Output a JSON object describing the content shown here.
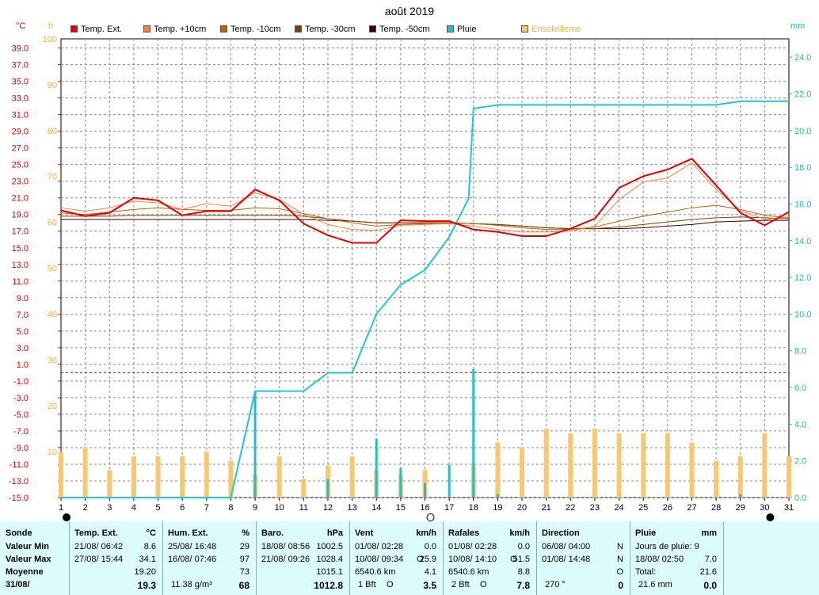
{
  "title": "août 2019",
  "units": {
    "temp": "°C",
    "hum": "h",
    "rain": "mm"
  },
  "legend": [
    {
      "label": "Temp. Ext.",
      "color": "#e00000"
    },
    {
      "label": "Temp. +10cm",
      "color": "#ff8040"
    },
    {
      "label": "Temp. -10cm",
      "color": "#c06000"
    },
    {
      "label": "Temp. -30cm",
      "color": "#804000"
    },
    {
      "label": "Temp. -50cm",
      "color": "#400000"
    },
    {
      "label": "Pluie",
      "color": "#20c0c8"
    },
    {
      "label": "Ensoleilleme",
      "color": "#f8c870"
    }
  ],
  "chart_data": {
    "type": "line",
    "title": "août 2019",
    "x": [
      1,
      2,
      3,
      4,
      5,
      6,
      7,
      8,
      9,
      10,
      11,
      12,
      13,
      14,
      15,
      16,
      17,
      18,
      19,
      20,
      21,
      22,
      23,
      24,
      25,
      26,
      27,
      28,
      29,
      30,
      31
    ],
    "x_ticks": [
      "1",
      "2",
      "3",
      "4",
      "5",
      "6",
      "7",
      "8",
      "9",
      "10",
      "11",
      "12",
      "13",
      "14",
      "15",
      "16",
      "17",
      "18",
      "19",
      "20",
      "21",
      "22",
      "23",
      "24",
      "25",
      "26",
      "27",
      "28",
      "29",
      "30",
      "31"
    ],
    "y_left_ticks": [
      "39.0",
      "37.0",
      "35.0",
      "33.0",
      "31.0",
      "29.0",
      "27.0",
      "25.0",
      "23.0",
      "21.0",
      "19.0",
      "17.0",
      "15.0",
      "13.0",
      "11.0",
      "9.0",
      "7.0",
      "5.0",
      "3.0",
      "1.0",
      "-1.0",
      "-3.0",
      "-5.0",
      "-7.0",
      "-9.0",
      "-11.0",
      "-13.0",
      "-15.0"
    ],
    "y_left_range": [
      -15,
      40.1
    ],
    "y_hum_ticks": [
      "100",
      "90",
      "80",
      "70",
      "60",
      "50",
      "40",
      "30",
      "20",
      "10"
    ],
    "y_hum_range": [
      0,
      100
    ],
    "y_right_ticks": [
      "24.0",
      "22.0",
      "20.0",
      "18.0",
      "16.0",
      "14.0",
      "12.0",
      "10.0",
      "8.0",
      "6.0",
      "4.0",
      "2.0",
      "0.0"
    ],
    "y_right_range": [
      0,
      25
    ],
    "grid": true,
    "series": [
      {
        "name": "Temp. Ext.",
        "axis": "temp",
        "color": "#e00000",
        "width": 2,
        "values": [
          19.5,
          18.8,
          19.2,
          21.0,
          20.7,
          18.9,
          19.4,
          19.4,
          22.0,
          20.7,
          17.9,
          16.5,
          15.6,
          15.6,
          18.3,
          18.2,
          18.2,
          17.2,
          16.9,
          16.4,
          16.4,
          17.3,
          18.5,
          22.2,
          23.6,
          24.4,
          25.7,
          22.5,
          19.2,
          17.7,
          19.3
        ]
      },
      {
        "name": "Temp. +10cm",
        "axis": "temp",
        "color": "#ff8040",
        "width": 1,
        "values": [
          19.8,
          19.4,
          19.8,
          20.6,
          20.4,
          19.6,
          20.3,
          20.0,
          21.6,
          20.8,
          19.0,
          17.8,
          17.2,
          17.1,
          17.7,
          17.8,
          17.9,
          17.6,
          17.2,
          16.9,
          16.9,
          17.0,
          17.6,
          20.8,
          22.9,
          23.4,
          25.2,
          22.0,
          19.5,
          18.4,
          18.7
        ]
      },
      {
        "name": "Temp. -10cm",
        "axis": "temp",
        "color": "#c06000",
        "width": 1,
        "values": [
          19.2,
          19.0,
          19.3,
          19.6,
          19.8,
          19.6,
          19.5,
          19.5,
          19.8,
          19.7,
          19.1,
          18.5,
          18.0,
          17.6,
          17.8,
          17.9,
          18.0,
          17.9,
          17.7,
          17.4,
          17.2,
          17.2,
          17.5,
          18.2,
          18.8,
          19.3,
          19.8,
          20.1,
          19.6,
          18.9,
          18.6
        ]
      },
      {
        "name": "Temp. -30cm",
        "axis": "temp",
        "color": "#804000",
        "width": 1,
        "values": [
          18.8,
          18.8,
          18.8,
          18.9,
          18.9,
          18.9,
          18.9,
          18.9,
          18.9,
          18.9,
          18.8,
          18.5,
          18.2,
          18.0,
          18.0,
          18.0,
          18.0,
          17.9,
          17.8,
          17.6,
          17.4,
          17.3,
          17.3,
          17.5,
          17.8,
          18.1,
          18.4,
          18.6,
          18.7,
          18.6,
          18.5
        ]
      },
      {
        "name": "Temp. -50cm",
        "axis": "temp",
        "color": "#400000",
        "width": 1,
        "values": [
          18.4,
          18.4,
          18.4,
          18.4,
          18.4,
          18.4,
          18.4,
          18.4,
          18.4,
          18.4,
          18.4,
          18.3,
          18.2,
          18.0,
          18.0,
          18.0,
          18.0,
          17.9,
          17.8,
          17.6,
          17.4,
          17.3,
          17.3,
          17.3,
          17.4,
          17.6,
          17.8,
          18.1,
          18.2,
          18.3,
          18.3
        ]
      },
      {
        "name": "Pluie",
        "axis": "rain",
        "color": "#20c8d0",
        "width": 2,
        "x": [
          1,
          8,
          9,
          11,
          12,
          13,
          14,
          15,
          16,
          17,
          17.8,
          18,
          19,
          20,
          21,
          22,
          23,
          24,
          25,
          26,
          27,
          28,
          29,
          30,
          31
        ],
        "values": [
          0,
          0,
          5.8,
          5.8,
          6.8,
          6.8,
          10.0,
          11.6,
          12.4,
          14.2,
          16.3,
          21.2,
          21.4,
          21.4,
          21.4,
          21.4,
          21.4,
          21.4,
          21.4,
          21.4,
          21.4,
          21.4,
          21.6,
          21.6,
          21.6
        ]
      }
    ],
    "rain_daily": [
      {
        "x": 9,
        "value": 5.8
      },
      {
        "x": 12,
        "value": 1.0
      },
      {
        "x": 14,
        "value": 3.2
      },
      {
        "x": 15,
        "value": 1.6
      },
      {
        "x": 16,
        "value": 0.8
      },
      {
        "x": 17,
        "value": 1.8
      },
      {
        "x": 18,
        "value": 7.0
      },
      {
        "x": 19,
        "value": 0.2
      },
      {
        "x": 29,
        "value": 0.2
      }
    ],
    "sunshine_daily_percent": [
      10,
      11,
      6,
      9,
      9,
      9,
      10,
      8,
      5,
      9,
      4,
      7,
      9,
      6,
      5,
      6,
      0,
      7,
      12,
      11,
      15,
      14,
      15,
      14,
      14,
      14,
      12,
      8,
      9,
      14,
      9
    ],
    "reference_line": {
      "axis": "temp",
      "value": 0.0,
      "style": "dashed",
      "color": "#c00000"
    }
  },
  "stats": {
    "sonde": {
      "header": "Sonde",
      "rows": [
        "Valeur Min",
        "Valeur Max",
        "Moyenne",
        "31/08/"
      ]
    },
    "temp": {
      "header": "Temp. Ext.",
      "unit": "°C",
      "min_date": "21/08/  06:42",
      "min": "8.6",
      "max_date": "27/08/  15:44",
      "max": "34.1",
      "avg": "19.20",
      "current": "19.3"
    },
    "hum": {
      "header": "Hum. Ext.",
      "unit": "%",
      "min_date": "25/08/  16:48",
      "min": "29",
      "max_date": "16/08/  07:46",
      "max": "97",
      "avg": "73",
      "current_note": "11.38 g/m³",
      "current": "68"
    },
    "baro": {
      "header": "Baro.",
      "unit": "hPa",
      "min_date": "18/08/  08:56",
      "min": "1002.5",
      "max_date": "21/08/  09:26",
      "max": "1028.4",
      "avg": "1015.1",
      "current": "1012.8"
    },
    "vent": {
      "header": "Vent",
      "unit": "km/h",
      "min_date": "01/08/  02:28",
      "min_dir": "",
      "min": "0.0",
      "max_date": "10/08/  09:34",
      "max_dir": "O",
      "max": "25.9",
      "avg_note": "6540.6 km",
      "avg": "4.1",
      "current_note": "1 Bft",
      "current_dir": "O",
      "current": "3.5"
    },
    "rafales": {
      "header": "Rafales",
      "unit": "km/h",
      "min_date": "01/08/  02:28",
      "min": "0.0",
      "max_date": "10/08/  14:10",
      "max_dir": "O",
      "max": "51.5",
      "avg_note": "6540.6 km",
      "avg": "8.8",
      "current_note": "2 Bft",
      "current_dir": "O",
      "current": "7.8"
    },
    "direction": {
      "header": "Direction",
      "min_date": "06/08/  04:00",
      "min": "N",
      "max_date": "01/08/  14:48",
      "max": "N",
      "avg": "O",
      "current_note": "270 °",
      "current": "0"
    },
    "pluie": {
      "header": "Pluie",
      "unit": "mm",
      "days_label": "Jours de pluie: 9",
      "max_date": "18/08/  02:50",
      "max": "7.0",
      "total_label": "Total:",
      "total": "21.6",
      "current_note": "21.6 mm",
      "current": "0.0"
    }
  }
}
